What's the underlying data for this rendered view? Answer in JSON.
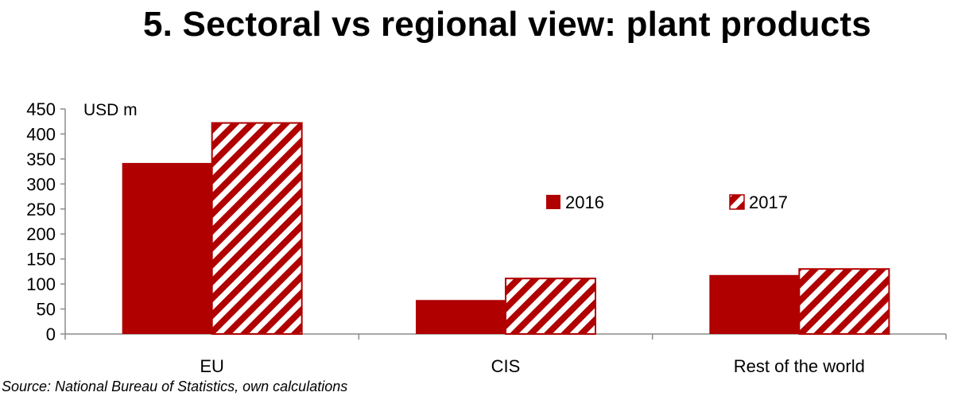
{
  "title": "5. Sectoral vs regional view: plant products",
  "source": "Source: National Bureau of Statistics, own calculations",
  "colors": {
    "bar": "#b00000",
    "hatch_bg": "#ffffff",
    "axis": "#8c8c8c"
  },
  "chart_data": {
    "type": "bar",
    "title": "5. Sectoral vs regional view: plant products",
    "ylabel": "USD m",
    "xlabel": "",
    "categories": [
      "EU",
      "CIS",
      "Rest of the world"
    ],
    "series": [
      {
        "name": "2016",
        "values": [
          342,
          68,
          118
        ],
        "pattern": "solid"
      },
      {
        "name": "2017",
        "values": [
          422,
          111,
          130
        ],
        "pattern": "hatched"
      }
    ],
    "ylim": [
      0,
      450
    ],
    "yticks": [
      0,
      50,
      100,
      150,
      200,
      250,
      300,
      350,
      400,
      450
    ],
    "grid": false,
    "legend": "center"
  }
}
